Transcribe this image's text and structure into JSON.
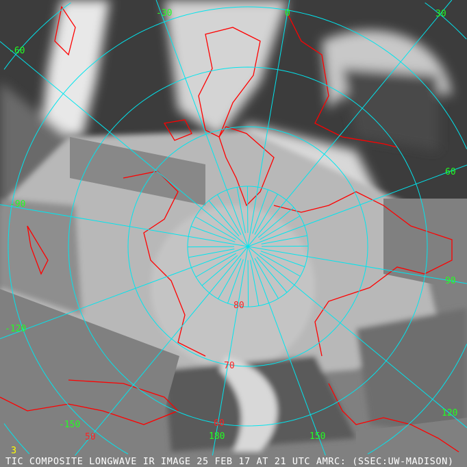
{
  "caption": "TIC COMPOSITE LONGWAVE IR IMAGE 25 FEB 17 AT 21 UTC AMRC: (SSEC:UW-MADISON)",
  "caption_marker": "3",
  "longitude_labels": [
    "-60",
    "-30",
    "0",
    "30",
    "60",
    "90",
    "120",
    "150",
    "180",
    "-150",
    "-120",
    "-90"
  ],
  "latitude_labels": [
    "80",
    "70",
    "60",
    "50"
  ],
  "colors": {
    "grid": "#00e5ee",
    "coastline": "#ff0000",
    "longitude_label": "#22ff22",
    "latitude_label": "#ff2020",
    "no_data": "#808080",
    "caption_text": "#ffffff"
  }
}
